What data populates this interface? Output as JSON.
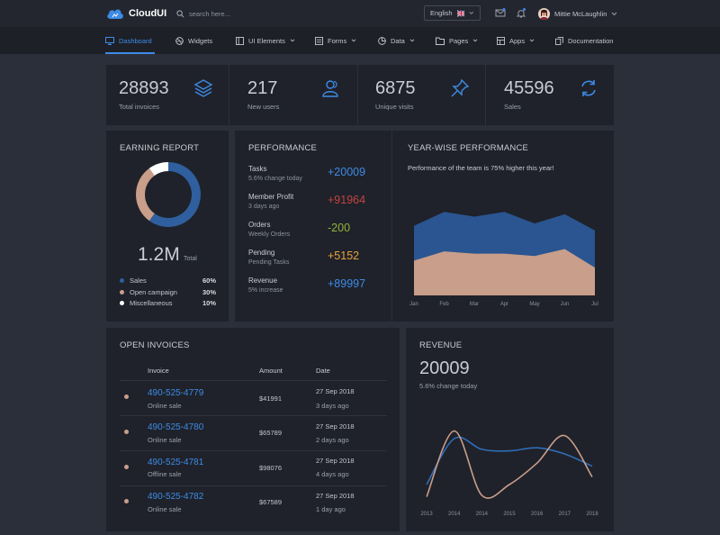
{
  "brand": {
    "name": "CloudUI"
  },
  "search": {
    "placeholder": "search here..."
  },
  "language": {
    "label": "English"
  },
  "user": {
    "name": "Mittie McLaughlin"
  },
  "nav": [
    {
      "label": "Dashboard",
      "icon": "monitor-icon"
    },
    {
      "label": "Widgets",
      "icon": "dribbble-icon"
    },
    {
      "label": "UI Elements",
      "icon": "sidebar-icon"
    },
    {
      "label": "Forms",
      "icon": "sliders-icon"
    },
    {
      "label": "Data",
      "icon": "pie-chart-icon"
    },
    {
      "label": "Pages",
      "icon": "folder-icon"
    },
    {
      "label": "Apps",
      "icon": "grid-icon"
    },
    {
      "label": "Documentation",
      "icon": "copy-icon"
    }
  ],
  "stats": [
    {
      "value": "28893",
      "label": "Total invoices",
      "icon": "layers-icon"
    },
    {
      "value": "217",
      "label": "New users",
      "icon": "users-icon"
    },
    {
      "value": "6875",
      "label": "Unique visits",
      "icon": "pin-icon"
    },
    {
      "value": "45596",
      "label": "Sales",
      "icon": "refresh-icon"
    }
  ],
  "earning": {
    "title": "EARNING REPORT",
    "total": "1.2M",
    "total_label": "Total",
    "legend": [
      {
        "label": "Sales",
        "pct": "60%",
        "color": "#2f5f9e"
      },
      {
        "label": "Open campaign",
        "pct": "30%",
        "color": "#c99e8a"
      },
      {
        "label": "Miscellaneous",
        "pct": "10%",
        "color": "#ffffff"
      }
    ]
  },
  "performance": {
    "title": "PERFORMANCE",
    "items": [
      {
        "label": "Tasks",
        "sub": "5.6% change today",
        "value": "+20009",
        "color": "#3d8be6"
      },
      {
        "label": "Member Profit",
        "sub": "3 days ago",
        "value": "+91964",
        "color": "#c1443f"
      },
      {
        "label": "Orders",
        "sub": "Weekly Orders",
        "value": "-200",
        "color": "#8fb33a"
      },
      {
        "label": "Pending",
        "sub": "Pending Tasks",
        "value": "+5152",
        "color": "#e9a33b"
      },
      {
        "label": "Revenue",
        "sub": "5% increase",
        "value": "+89997",
        "color": "#3d8be6"
      }
    ]
  },
  "yearwise": {
    "title": "YEAR-WISE PERFORMANCE",
    "subtitle": "Performance of the team is 75% higher this year!"
  },
  "invoices": {
    "title": "OPEN INVOICES",
    "headers": [
      "Invoice",
      "Amount",
      "Date"
    ],
    "rows": [
      {
        "number": "490-525-4779",
        "type": "Online sale",
        "amount": "$41991",
        "date": "27 Sep 2018",
        "ago": "3 days ago"
      },
      {
        "number": "490-525-4780",
        "type": "Online sale",
        "amount": "$65789",
        "date": "27 Sep 2018",
        "ago": "2 days ago"
      },
      {
        "number": "490-525-4781",
        "type": "Offline sale",
        "amount": "$98076",
        "date": "27 Sep 2018",
        "ago": "4 days ago"
      },
      {
        "number": "490-525-4782",
        "type": "Online sale",
        "amount": "$67589",
        "date": "27 Sep 2018",
        "ago": "1 day ago"
      }
    ]
  },
  "revenue": {
    "title": "REVENUE",
    "value": "20009",
    "sub": "5.6% change today"
  },
  "chart_data": [
    {
      "type": "pie",
      "labels": [
        "Sales",
        "Open campaign",
        "Miscellaneous"
      ],
      "values": [
        60,
        30,
        10
      ],
      "colors": [
        "#2f5f9e",
        "#c99e8a",
        "#ffffff"
      ]
    },
    {
      "type": "area",
      "categories": [
        "Jan",
        "Feb",
        "Mar",
        "Apr",
        "May",
        "Jun",
        "Jul"
      ],
      "series": [
        {
          "values": [
            30,
            36,
            34,
            36,
            31,
            35,
            28
          ],
          "color": "#2a5590"
        },
        {
          "values": [
            15,
            19,
            18,
            18,
            17,
            20,
            12
          ],
          "color": "#c99e8a"
        }
      ],
      "ylim": [
        0,
        40
      ],
      "grid": false,
      "legend": "none"
    },
    {
      "type": "line",
      "categories": [
        "2013",
        "2014",
        "2014",
        "2015",
        "2016",
        "2017",
        "2018"
      ],
      "series": [
        {
          "values": [
            10,
            40,
            33,
            32,
            34,
            30,
            22
          ],
          "color": "#2f6db8"
        },
        {
          "values": [
            2,
            45,
            3,
            10,
            24,
            42,
            15
          ],
          "color": "#c99e8a"
        }
      ],
      "ylim": [
        0,
        50
      ],
      "grid": false,
      "legend": "none"
    }
  ]
}
